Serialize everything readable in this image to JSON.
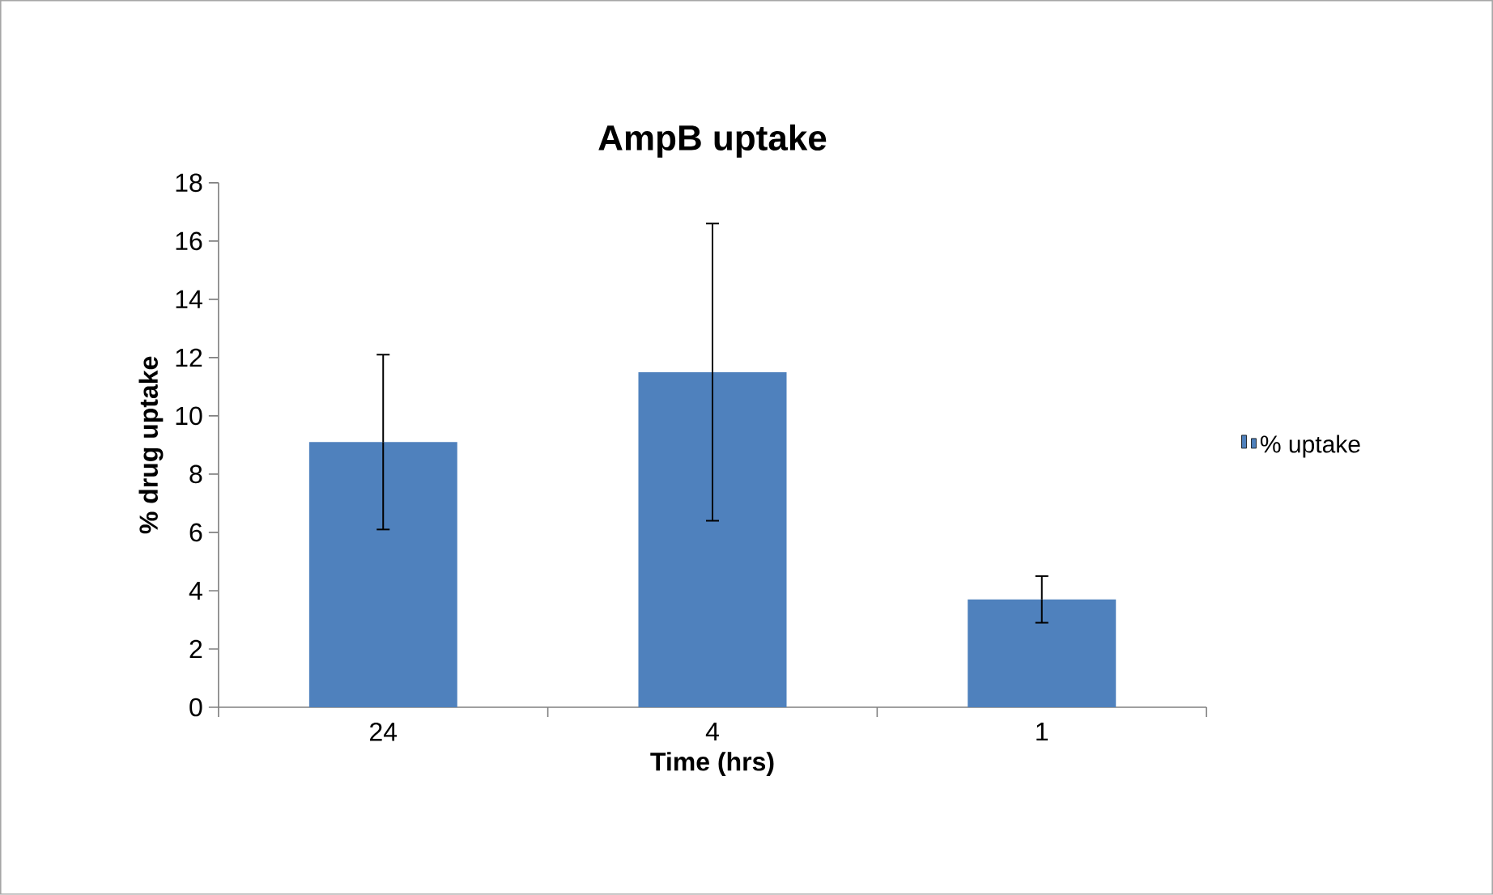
{
  "chart_data": {
    "type": "bar",
    "title": "AmpB uptake",
    "xlabel": "Time (hrs)",
    "ylabel": "% drug uptake",
    "categories": [
      "24",
      "4",
      "1"
    ],
    "series": [
      {
        "name": "% uptake",
        "color": "#4f81bd",
        "values": [
          9.1,
          11.5,
          3.7
        ],
        "errors": [
          3.0,
          5.1,
          0.8
        ]
      }
    ],
    "ylim": [
      0,
      18
    ],
    "yticks": [
      0,
      2,
      4,
      6,
      8,
      10,
      12,
      14,
      16,
      18
    ],
    "grid": false,
    "legend": "right"
  }
}
